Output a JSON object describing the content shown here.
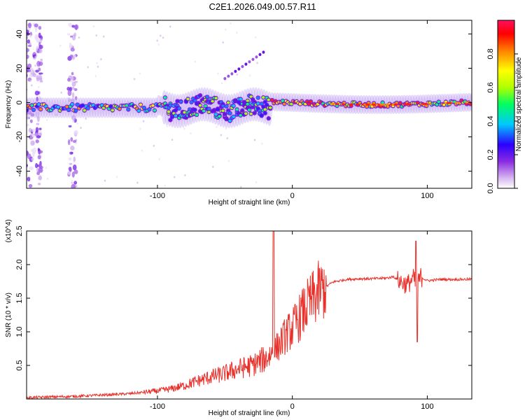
{
  "title": "C2E1.2026.049.00.57.R11",
  "chart_data": [
    {
      "type": "heatmap",
      "xlabel": "Height of straight line (km)",
      "ylabel": "Frequency (Hz)",
      "xlim": [
        -197,
        133
      ],
      "ylim": [
        -50,
        48
      ],
      "xticks": [
        -100,
        0,
        100
      ],
      "xtick_labels": [
        "-100",
        "0",
        "100"
      ],
      "yticks": [
        40,
        20,
        0,
        -20,
        -40
      ],
      "ytick_labels": [
        "40",
        "20",
        "0",
        "-20",
        "-40"
      ],
      "colorbar": {
        "label": "Normalized spectral amplitude",
        "range": [
          0,
          1
        ],
        "ticks": [
          0.0,
          0.2,
          0.4,
          0.6,
          0.8
        ],
        "tick_labels": [
          "0.0",
          "0.2",
          "0.4",
          "0.6",
          "0.8"
        ]
      }
    },
    {
      "type": "line",
      "xlabel": "Height of straight line (km)",
      "ylabel": "SNR (10 * v/v)",
      "scale_label": "(x10^4)",
      "xlim": [
        -197,
        133
      ],
      "ylim": [
        0,
        2.5
      ],
      "xticks": [
        -100,
        0,
        100
      ],
      "xtick_labels": [
        "-100",
        "0",
        "100"
      ],
      "yticks": [
        0.5,
        1.0,
        1.5,
        2.0,
        2.5
      ],
      "ytick_labels": [
        "0.5",
        "1.0",
        "1.5",
        "2.0",
        "2.5"
      ],
      "color": "#e8312b",
      "series": [
        {
          "name": "SNR",
          "x": [
            -197,
            -180,
            -160,
            -140,
            -120,
            -100,
            -90,
            -80,
            -70,
            -60,
            -50,
            -40,
            -30,
            -20,
            -15,
            -10,
            -5,
            0,
            5,
            10,
            15,
            20,
            30,
            40,
            50,
            60,
            70,
            75,
            80,
            85,
            90,
            92,
            95,
            100,
            110,
            120,
            133
          ],
          "y": [
            0.02,
            0.03,
            0.04,
            0.06,
            0.08,
            0.12,
            0.15,
            0.2,
            0.27,
            0.33,
            0.38,
            0.45,
            0.5,
            0.6,
            0.68,
            0.8,
            0.95,
            1.05,
            1.2,
            1.35,
            1.48,
            1.6,
            1.74,
            1.78,
            1.79,
            1.79,
            1.8,
            1.82,
            1.75,
            1.7,
            1.8,
            1.65,
            1.82,
            1.76,
            1.78,
            1.78,
            1.78
          ]
        }
      ]
    }
  ]
}
